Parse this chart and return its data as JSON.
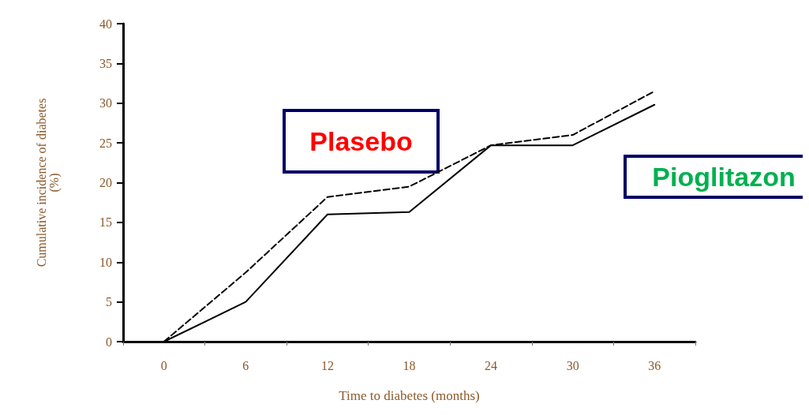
{
  "chart_data": {
    "type": "line",
    "xlabel": "Time to diabetes (months)",
    "ylabel": "Cumulative incidence of diabetes\n(%)",
    "categories": [
      "0",
      "6",
      "12",
      "18",
      "24",
      "30",
      "36"
    ],
    "series": [
      {
        "name": "Plasebo",
        "color": "#000000",
        "line_style": "dashed",
        "values": [
          0,
          8.7,
          18.2,
          19.5,
          24.7,
          26,
          31.5
        ]
      },
      {
        "name": "Pioglitazon",
        "color": "#000000",
        "line_style": "solid",
        "values": [
          0,
          5,
          16,
          16.3,
          24.7,
          24.7,
          29.8
        ]
      }
    ],
    "ylim": [
      0,
      40
    ],
    "yticks": [
      0,
      5,
      10,
      15,
      20,
      25,
      30,
      35,
      40
    ],
    "grid": false,
    "legend": false,
    "marker": "none"
  }
}
